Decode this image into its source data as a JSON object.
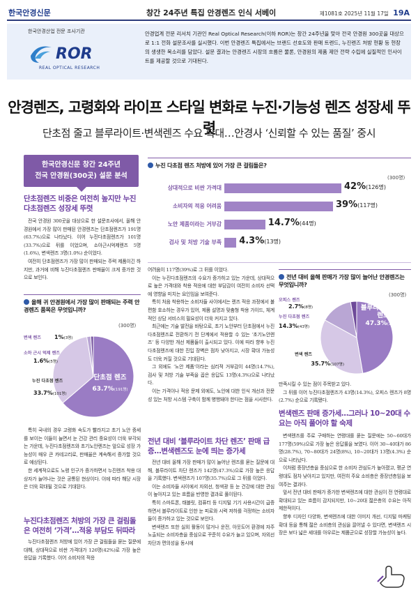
{
  "masthead": {
    "logo": "한국안경신문",
    "title": "창간 24주년 특집 안경렌즈 인식 서베이",
    "issue": "제1081호",
    "date": "2025년 11월 17일",
    "page": "19A"
  },
  "intro": {
    "org": "한국안경산업 전문 조사기관",
    "brand": "ROR",
    "brand_sub": "REAL OPTICAL RESEARCH",
    "text": "안경업계 전문 리서치 기관인 Real Optical Research(이하 ROR)는 창간 24주년을 맞아 전국 안경원 300곳을 대상으로 1:1 전화 설문조사를 실시했다. 이번 안경렌즈 특집에서는 브랜드 선호도와 판매 트렌드, 누진렌즈 처방 현황 등 현장의 생생한 목소리를 담았다. 설문 결과는 안경렌즈 시장의 흐름은 물론, 안경원의 제품 제안 전략 수립에 실질적인 인사이트를 제공할 것으로 기대된다."
  },
  "headline": "안경렌즈, 고령화와 라이프 스타일 변화로 누진·기능성 렌즈 성장세 뚜렷",
  "subhead": "단초점 줄고 블루라이트·변색렌즈 수요 확대…안경사 ‘신뢰할 수 있는 품질’ 중시",
  "badge": {
    "line1": "한국안경신문 창간 24주년",
    "line2": "전국 안경원(300곳) 설문 분석"
  },
  "col1": {
    "sec1_title": "단초점렌즈 비중은 여전히 높지만 누진다초점렌즈 성장세 뚜렷",
    "sec1_p1": "전국 안경원 300곳을 대상으로 한 설문조사에서, 올해 안경원에서 가장 많이 판매된 안경렌즈는 단초점렌즈가 191명(63.7%)으로 나타났다. 이어 누진다초점렌즈가 101명(33.7%)으로 뒤를 이었으며, 소아근시억제렌즈 5명(1.6%), 변색렌즈 3명(1.0%) 순이었다.",
    "sec1_p2": "여전히 단초점렌즈가 가장 많이 판매되는 주력 제품이긴 하지만, 과거에 비해 누진다초점렌즈 판매율이 크게 증가한 것으로 보인다.",
    "q1_title": "올해 귀 안경원에서 가장 많이 판매되는 주력 안경렌즈 품목은 무엇입니까?",
    "q1_unit": "(300명)",
    "sec1_p3": "특히 국내의 경우 고령화 속도가 빨라지고 초기 노안 증세를 보이는 이들이 늘면서 눈 건강 관리 중요성이 더욱 부각되는 가운데, 누진다초점렌즈와 초기노안렌즈는 앞으로 성장 가능성이 매우 큰 카테고리로, 판매율은 계속해서 증가할 것으로 예상된다.",
    "sec1_p4": "한 세계적으로도 노령 인구가 증가하면서 누진렌즈 착용 대상자가 늘어나는 것은 공통된 현상이다. 이에 따라 해당 시장은 더욱 확대될 것으로 기대된다.",
    "sec2_title": "누진다초점렌즈 처방의 가장 큰 걸림돌은 여전히 ‘가격’…적응 부담도 뒤따라",
    "sec2_p1": "누진다초점렌즈 처방에 있어 가장 큰 걸림돌을 묻는 질문에 대해, 상대적으로 비싼 가격대가 126명(42%)로 가장 높은 응답을 기록했다. 이어 소비자의 적응"
  },
  "q2": {
    "title": "누진 다초점 렌즈 처방에 있어 가장 큰 걸림돌은?",
    "unit": "(300명)"
  },
  "col2": {
    "p1": "어려움이 117명(39%)로 그 뒤를 이었다.",
    "p2": "이는 누진다초점렌즈의 수요가 증가하고 있는 가운데, 상대적으로 높은 가격대와 착용 적응에 대한 부담감이 여전히 소비자 선택에 영향을 미치는 요인임을 보여준다.",
    "p3": "특히 처음 착용하는 소비자들 사이에서는 렌즈 적응 과정에서 불편함 호소하는 경우가 있어, 제품 설명과 맞춤형 착용 가이드, 체계적인 상담 서비스의 필요성이 더욱 커지고 있다.",
    "p4": "최근에는 기술 발전을 바탕으로, 초기 노안부터 단초점에서 누진다초점렌즈로 전환하기 전 단계에서 적용할 수 있는 ‘초기노안렌즈’ 등 다양한 개선 제품들이 출시되고 있다. 이에 따라 향후 누진다초점렌즈에 대한 진입 장벽은 점차 낮아지고, 시장 확대 가능성도 더욱 커질 것으로 기대된다.",
    "p5": "그 외에도 ‘노안 제품’이라는 심리적 거부감이 44명(14.7%), 검사 및 처방 기술 부족을 꼽은 응답도 13명(4.3%)으로 나타났다.",
    "p6": "이는 가격이나 적응 문제 외에도, 노안에 대한 인식 개선과 전문성 있는 처방 시스템 구축이 함께 병행돼야 한다는 점을 시사한다.",
    "sec3_title": "전년 대비 ‘블루라이트 차단 렌즈’ 판매 급증…변색렌즈도 눈에 띄는 증가세",
    "p7": "전년 대비 올해 가장 판매가 많이 늘어난 렌즈를 묻는 질문에 대해, 블루라이트 차단 렌즈가 142명(47.3%)으로 가장 높은 응답을 기록했다. 변색렌즈가 107명(35.7%)으로 그 뒤를 이었다.",
    "p8": "이는 소비자들 사이에서 자외선, 청색광 등 눈 건강에 대한 관심이 높아지고 있는 흐름을 반영한 결과로 풀이된다.",
    "p9": "특히 스마트폰, 태블릿, 컴퓨터 등 디지털 기기 사용시간이 급증하면서 블루라이트로 인한 눈 피로와 시력 저하를 걱정하는 소비자들이 증가하고 있는 것으로 보인다.",
    "p10": "변색렌즈 또한 실외 활동이 많거나 운전, 아웃도어 환경에 자주 노출되는 소비자층을 중심으로 꾸준히 수요가 늘고 있으며, 자외선 차단과 편의성을 동시에"
  },
  "q3": {
    "title": "전년 대비 올해 판매가 가장 많이 늘어난 안경렌즈는 무엇입니까?",
    "unit": "(300명)"
  },
  "col3": {
    "p1": "만족시킬 수 있는 점이 주목받고 있다.",
    "p2": "그 뒤를 이어 누진다초점렌즈가 43명(14.3%), 오피스 렌즈가 8명(2.7%) 순으로 기록됐다.",
    "sec4_title": "변색렌즈 판매 증가세…그러나 10~20대 수요는 아직 풀어야 할 숙제",
    "p3": "변색렌즈를 주로 구매하는 연령대를 묻는 질문에는 50~60대가 177명(59%)으로 가장 높은 응답률을 보였다. 이어 30~40대가 86명(28.7%), 70~80대가 24명(8%), 10~20대가 13명(4.3%) 순으로 나타났다.",
    "p4": "이처럼 중장년층을 중심으로 한 소비자 관심도가 높아졌고, 평균 연령대도 점차 낮아지고 있지만, 여전히 주요 소비층은 중장년층임을 보여주는 결과다.",
    "p5": "앞서 전년 대비 판매가 증가한 변색렌즈에 대한 관심이 전 연령대로 확대되고 있는 흐름이 감지되지만, 10~20대 젊은층의 수요는 아직 제한적이다.",
    "p6": "향후 디자인 다양화, 변색렌즈에 대한 이미지 개선, 디지털 마케팅 확대 등을 통해 젊은 소비층의 관심을 끌어낼 수 있다면, 변색렌즈 시장은 보다 넓은 세대를 아우르는 제품군으로 성장할 가능성이 높다."
  },
  "chart_data": [
    {
      "type": "pie",
      "title": "올해 귀 안경원에서 가장 많이 판매되는 주력 안경렌즈 품목은 무엇입니까?",
      "unit": "(300명)",
      "slices": [
        {
          "label": "단초점 렌즈",
          "percent": 63.7,
          "count": "(191명)",
          "color": "#9a7cc4"
        },
        {
          "label": "누진 다초점 렌즈",
          "percent": 33.7,
          "count": "(101명)",
          "color": "#d6c8e6"
        },
        {
          "label": "소아 근시 억제 렌즈",
          "percent": 1.6,
          "count": "(5명)",
          "color": "#b9a6d4"
        },
        {
          "label": "변색 렌즈",
          "percent": 1,
          "count": "(3명)",
          "color": "#6e4a99"
        }
      ]
    },
    {
      "type": "bar",
      "title": "누진 다초점 렌즈 처방에 있어 가장 큰 걸림돌은?",
      "unit": "(300명)",
      "categories": [
        "상대적으로 비싼 가격대",
        "소비자의 적응 어려움",
        "노안 제품이라는 거부감",
        "검사 및 처방 기술 부족"
      ],
      "values": [
        42,
        39,
        14.7,
        4.3
      ],
      "counts": [
        "(126명)",
        "(117명)",
        "(44명)",
        "(13명)"
      ]
    },
    {
      "type": "pie",
      "title": "전년 대비 올해 판매가 가장 많이 늘어난 안경렌즈는 무엇입니까?",
      "unit": "(300명)",
      "slices": [
        {
          "label": "블루라이트 차단 렌즈",
          "percent": 47.3,
          "count": "(142명)",
          "color": "#9a7cc4"
        },
        {
          "label": "변색 렌즈",
          "percent": 35.7,
          "count": "(107명)",
          "color": "#d6c8e6"
        },
        {
          "label": "누진 다초점 렌즈",
          "percent": 14.3,
          "count": "(43명)",
          "color": "#b9a6d4"
        },
        {
          "label": "오피스 렌즈",
          "percent": 2.7,
          "count": "(8명)",
          "color": "#6e4a99"
        }
      ]
    }
  ]
}
